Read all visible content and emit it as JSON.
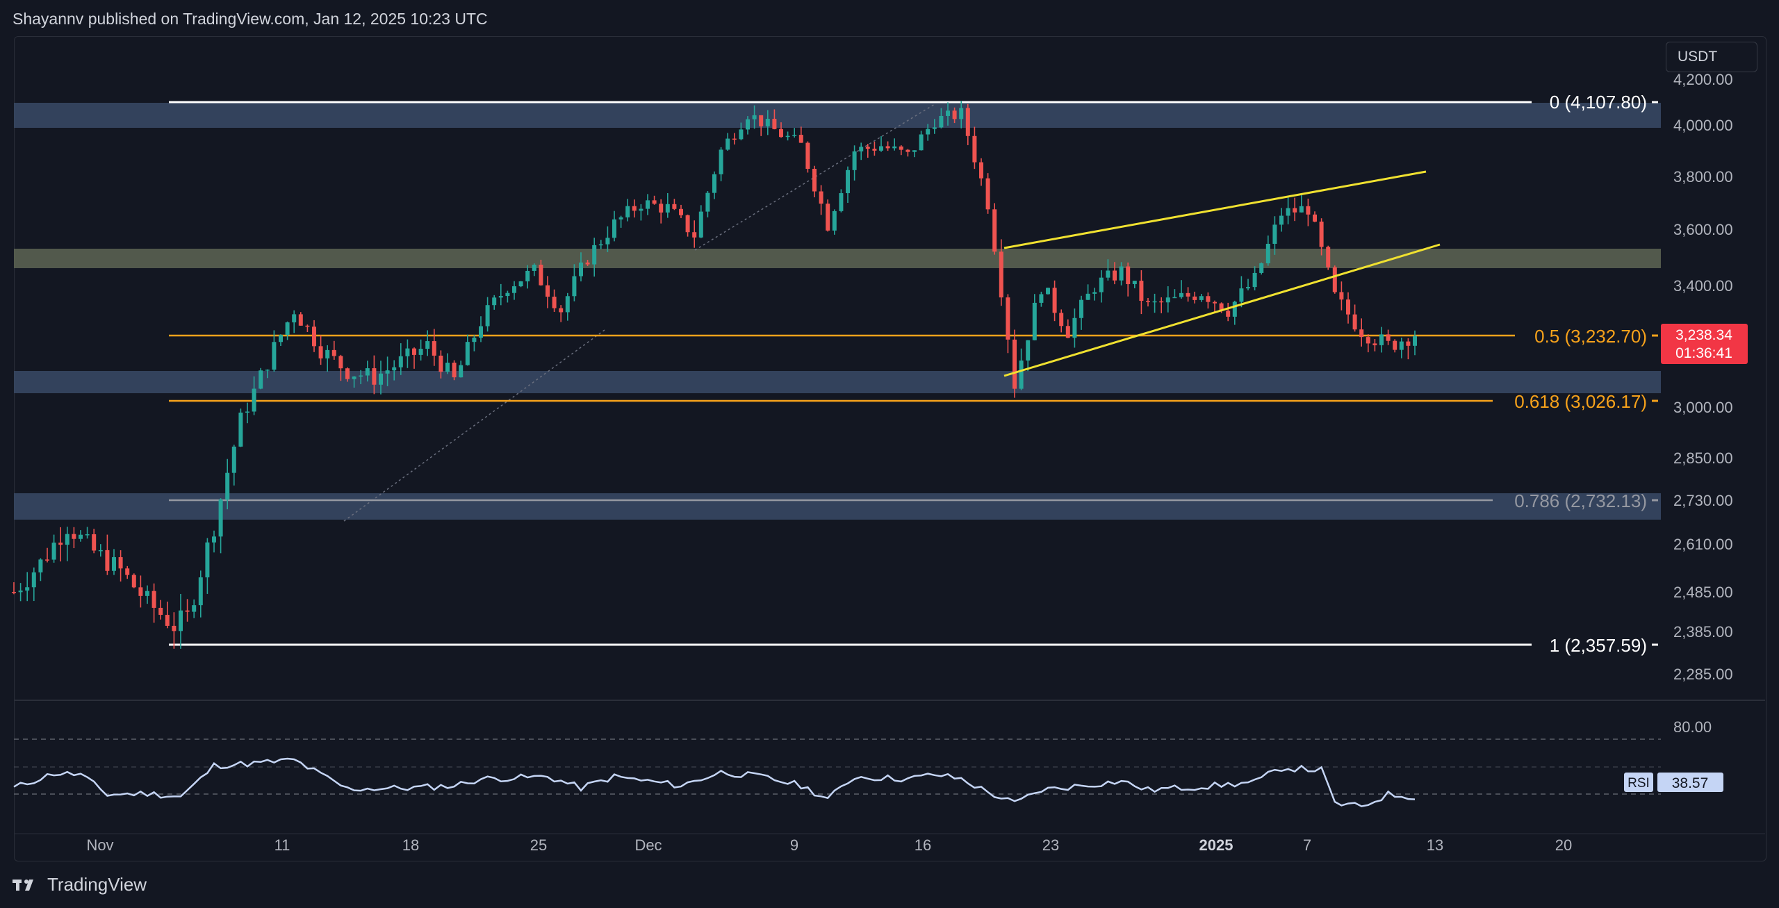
{
  "header": {
    "published": "Shayannv published on TradingView.com, Jan 12, 2025 10:23 UTC"
  },
  "quote_currency": "USDT",
  "footer": {
    "brand": "TradingView"
  },
  "colors": {
    "bg": "#131722",
    "up": "#26a69a",
    "down": "#ef5350",
    "fib_white": "#ffffff",
    "fib_orange": "#f7a21b",
    "fib_gray": "#9598a1",
    "wedge": "#f0e130",
    "zone_blue": "#3a4a66",
    "zone_olive": "#5e6553",
    "rsi_line": "#c5d5f5",
    "rsi_fill": "#3a6b3f",
    "price_tag": "#f23645"
  },
  "chart_data": [
    {
      "type": "candlestick",
      "title": "",
      "y_axis": {
        "ticks": [
          "4,200.00",
          "4,000.00",
          "3,800.00",
          "3,600.00",
          "3,400.00",
          "3,000.00",
          "2,850.00",
          "2,730.00",
          "2,610.00",
          "2,485.00",
          "2,385.00",
          "2,285.00"
        ]
      },
      "x_axis": {
        "ticks": [
          "Nov",
          "11",
          "18",
          "25",
          "Dec",
          "9",
          "16",
          "23",
          "2025",
          "7",
          "13",
          "20"
        ]
      },
      "series": [
        {
          "values": [
            [
              0,
              2485
            ],
            [
              4,
              2560
            ],
            [
              8,
              2660
            ],
            [
              12,
              2590
            ],
            [
              16,
              2540
            ],
            [
              20,
              2460
            ],
            [
              24,
              2400
            ],
            [
              26,
              2420
            ],
            [
              30,
              2660
            ],
            [
              34,
              2960
            ],
            [
              38,
              3150
            ],
            [
              42,
              3320
            ],
            [
              46,
              3190
            ],
            [
              50,
              3120
            ],
            [
              54,
              3100
            ],
            [
              58,
              3150
            ],
            [
              62,
              3200
            ],
            [
              66,
              3090
            ],
            [
              70,
              3280
            ],
            [
              74,
              3400
            ],
            [
              78,
              3450
            ],
            [
              82,
              3320
            ],
            [
              86,
              3500
            ],
            [
              90,
              3620
            ],
            [
              94,
              3700
            ],
            [
              98,
              3680
            ],
            [
              102,
              3580
            ],
            [
              106,
              3900
            ],
            [
              110,
              4050
            ],
            [
              114,
              3980
            ],
            [
              118,
              3920
            ],
            [
              122,
              3620
            ],
            [
              126,
              3900
            ],
            [
              130,
              3920
            ],
            [
              134,
              3880
            ],
            [
              138,
              4020
            ],
            [
              142,
              4050
            ],
            [
              146,
              3700
            ],
            [
              150,
              3080
            ],
            [
              154,
              3400
            ],
            [
              158,
              3250
            ],
            [
              162,
              3400
            ],
            [
              166,
              3450
            ],
            [
              170,
              3330
            ],
            [
              174,
              3350
            ],
            [
              178,
              3380
            ],
            [
              182,
              3320
            ],
            [
              186,
              3420
            ],
            [
              190,
              3660
            ],
            [
              194,
              3680
            ],
            [
              198,
              3360
            ],
            [
              202,
              3250
            ],
            [
              206,
              3200
            ],
            [
              210,
              3240
            ]
          ]
        }
      ],
      "fib_levels": [
        {
          "label": "0 (4,107.80)",
          "value": 4107.8
        },
        {
          "label": "0.5 (3,232.70)",
          "value": 3232.7
        },
        {
          "label": "0.618 (3,026.17)",
          "value": 3026.17
        },
        {
          "label": "0.786 (2,732.13)",
          "value": 2732.13
        },
        {
          "label": "1 (2,357.59)",
          "value": 2357.59
        }
      ],
      "zones": [
        {
          "from": 3980,
          "to": 4055,
          "kind": "blue"
        },
        {
          "from": 3455,
          "to": 3520,
          "kind": "olive"
        },
        {
          "from": 3060,
          "to": 3120,
          "kind": "blue"
        },
        {
          "from": 2660,
          "to": 2745,
          "kind": "blue"
        }
      ],
      "last_price": {
        "value": "3,238.34",
        "countdown": "01:36:41"
      }
    },
    {
      "type": "line",
      "name": "RSI",
      "y_axis": {
        "ticks": [
          "80.00"
        ]
      },
      "last_value": "38.57",
      "label": "RSI"
    }
  ]
}
